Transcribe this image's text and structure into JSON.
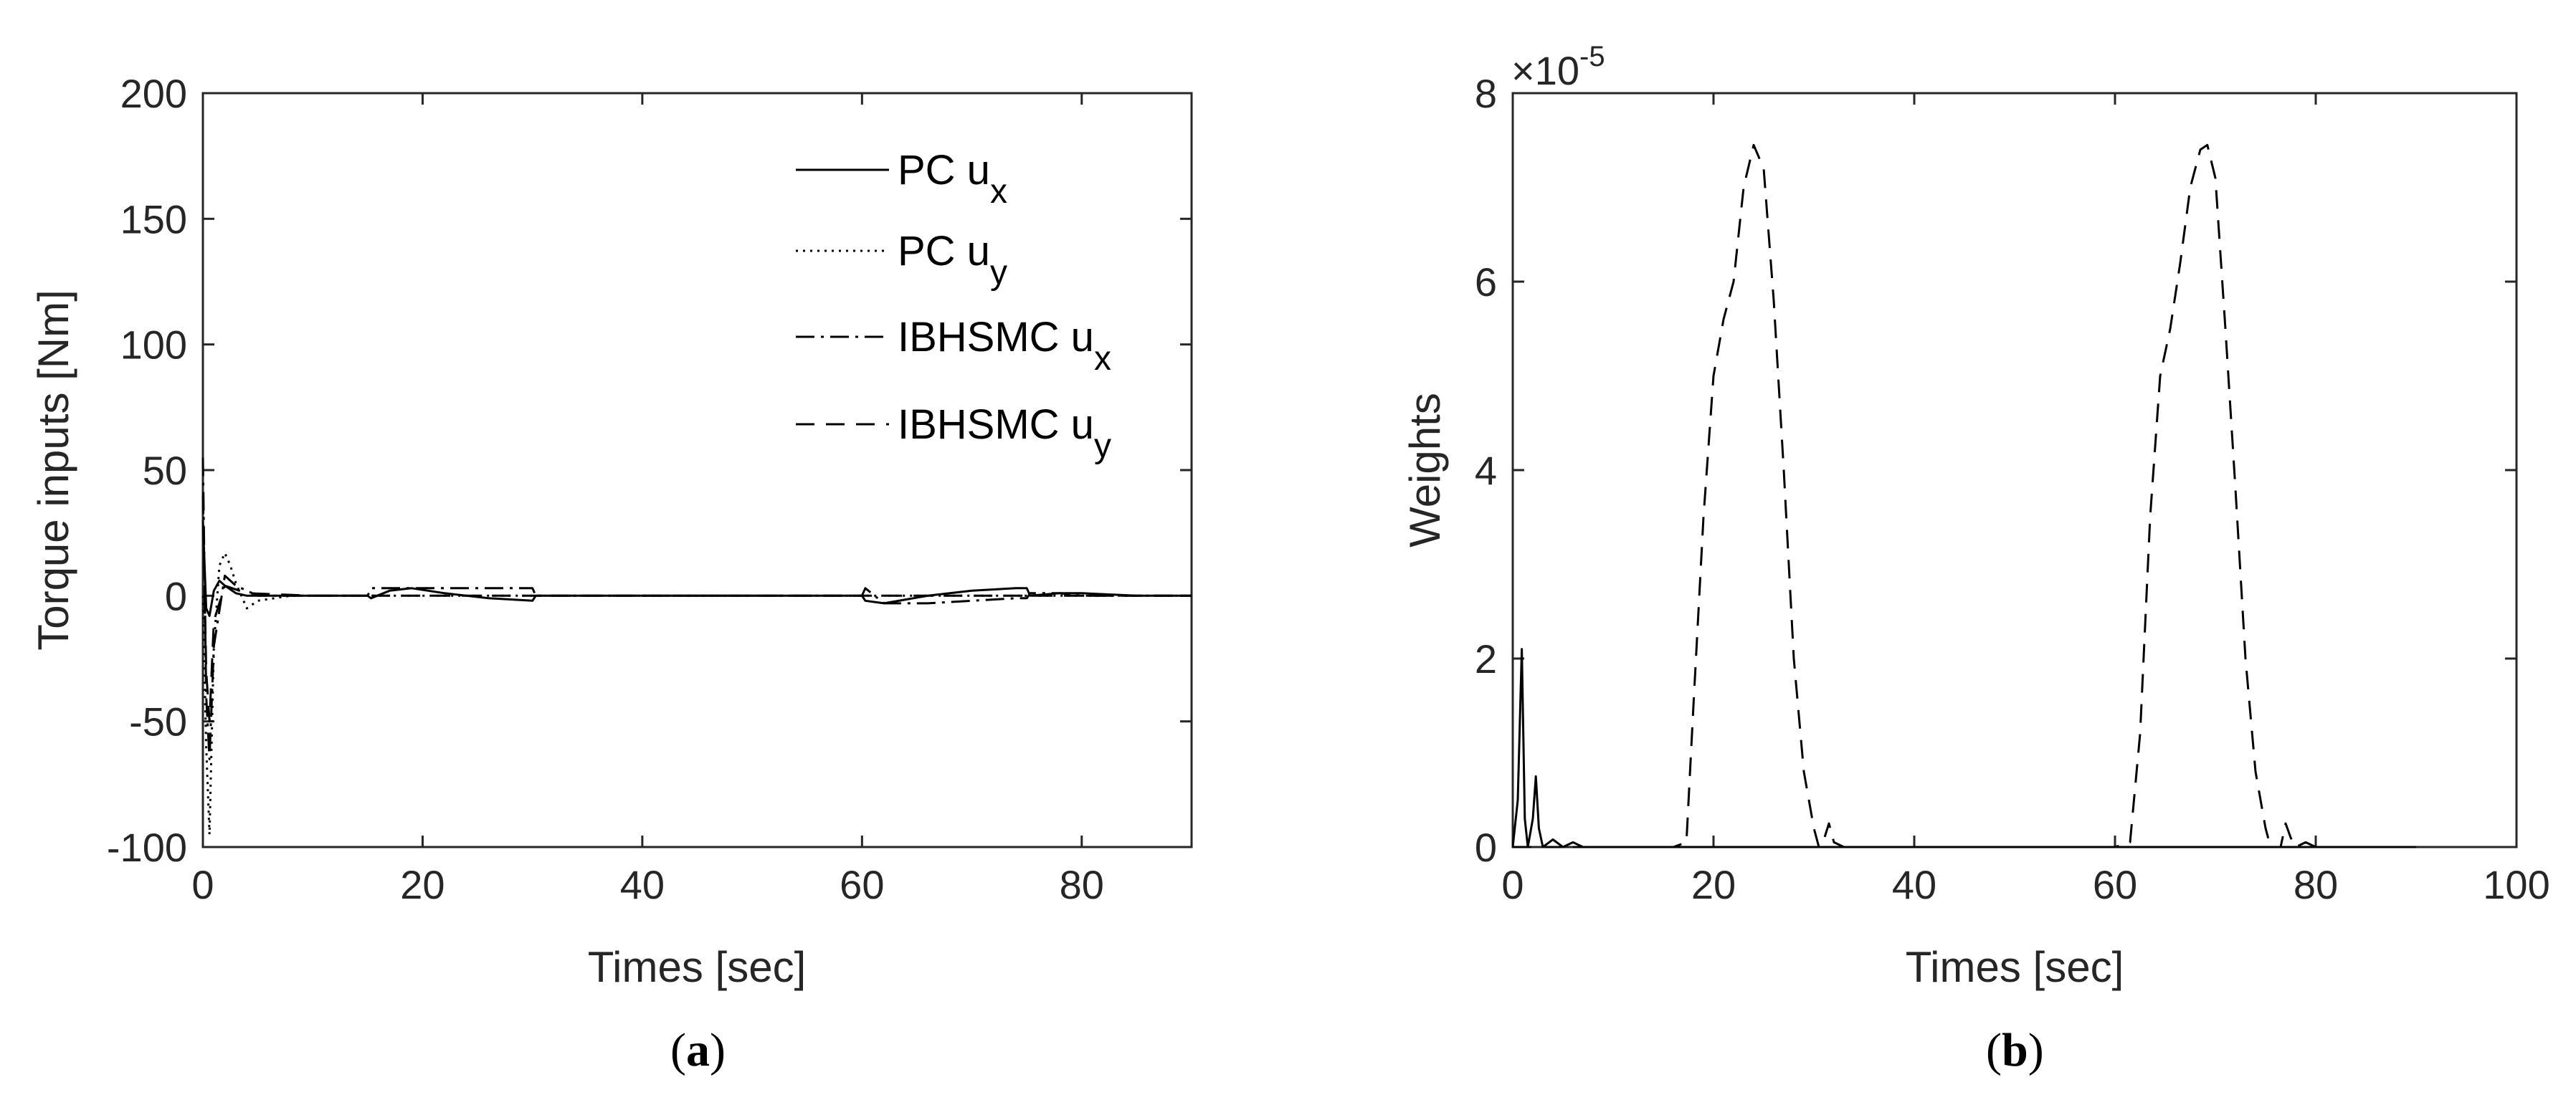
{
  "chart_data": [
    {
      "type": "line",
      "caption": "(a)",
      "xlabel": "Times [sec]",
      "ylabel": "Torque inputs [Nm]",
      "xlim": [
        0,
        90
      ],
      "ylim": [
        -100,
        200
      ],
      "xticks": [
        "0",
        "20",
        "40",
        "60",
        "80"
      ],
      "yticks": [
        "-100",
        "-50",
        "0",
        "50",
        "100",
        "150",
        "200"
      ],
      "grid": false,
      "legend_placement": "top-right",
      "series": [
        {
          "name": "PC u",
          "subscript": "x",
          "dash": "solid",
          "x": [
            0,
            0.3,
            0.6,
            1.0,
            1.5,
            2.0,
            3.0,
            4.0,
            6.0,
            10,
            15,
            15.3,
            17,
            19,
            22,
            26,
            30,
            30.3,
            33,
            40,
            50,
            60,
            60.3,
            62,
            66,
            70,
            74,
            75,
            75.3,
            78,
            80,
            85,
            90
          ],
          "y": [
            30,
            -5,
            -8,
            2,
            6,
            4,
            1,
            0,
            0,
            0,
            0,
            -1,
            2,
            3,
            1,
            -1,
            -2,
            0,
            0,
            0,
            0,
            0,
            -2,
            -3,
            0,
            2,
            3,
            3,
            0,
            1,
            1,
            0,
            0
          ]
        },
        {
          "name": "PC u",
          "subscript": "y",
          "dash": "dotted",
          "x": [
            0,
            0.3,
            0.6,
            1.0,
            1.5,
            2.0,
            2.5,
            3.0,
            4.0,
            5.0,
            8,
            15,
            20,
            30,
            40,
            60,
            80,
            90
          ],
          "y": [
            0,
            -60,
            -95,
            -20,
            12,
            17,
            12,
            5,
            -5,
            -2,
            0,
            0,
            0,
            0,
            0,
            0,
            0,
            0
          ]
        },
        {
          "name": "IBHSMC u",
          "subscript": "x",
          "dash": "dashdot",
          "x": [
            0,
            0.3,
            0.6,
            1.0,
            2.0,
            3.0,
            5.0,
            10,
            15,
            15.3,
            18,
            22,
            26,
            30,
            30.3,
            33,
            40,
            50,
            60,
            60.3,
            62,
            66,
            70,
            74,
            75,
            75.3,
            78,
            80,
            85,
            90
          ],
          "y": [
            55,
            -40,
            -65,
            -20,
            8,
            4,
            0,
            0,
            0,
            3,
            3,
            3,
            3,
            3,
            0,
            0,
            0,
            0,
            0,
            3,
            -3,
            -3,
            -2,
            -1,
            -1,
            1,
            1,
            0,
            0,
            0
          ]
        },
        {
          "name": "IBHSMC u",
          "subscript": "y",
          "dash": "dashed",
          "x": [
            0,
            0.3,
            0.6,
            1.0,
            2.0,
            4.0,
            10,
            30,
            60,
            90
          ],
          "y": [
            40,
            -30,
            -50,
            -10,
            4,
            1,
            0,
            0,
            0,
            0
          ]
        }
      ]
    },
    {
      "type": "line",
      "caption": "(b)",
      "xlabel": "Times [sec]",
      "ylabel": "Weights",
      "xlim": [
        0,
        100
      ],
      "ylim": [
        0,
        8
      ],
      "xticks": [
        "0",
        "20",
        "40",
        "60",
        "80",
        "100"
      ],
      "yticks": [
        "0",
        "2",
        "4",
        "6",
        "8"
      ],
      "exponent_label": "×10",
      "exponent_power": "-5",
      "grid": false,
      "series": [
        {
          "dash": "solid",
          "x": [
            0,
            0.5,
            0.9,
            1.2,
            1.5,
            2.0,
            2.3,
            2.6,
            3.0,
            4.0,
            5.0,
            6.0,
            7.0,
            10,
            20,
            40,
            60,
            80,
            90
          ],
          "y": [
            0,
            0.5,
            2.1,
            0.3,
            0,
            0.3,
            0.75,
            0.2,
            0,
            0.08,
            0,
            0.05,
            0,
            0,
            0,
            0,
            0,
            0,
            0
          ]
        },
        {
          "dash": "dashed",
          "x": [
            0,
            16,
            17.3,
            18,
            19,
            20,
            21,
            22,
            23,
            24,
            25,
            26,
            27,
            28,
            29,
            30,
            30.5,
            31,
            31.5,
            32,
            33,
            35,
            60,
            61.5,
            62.5,
            63.5,
            64.5,
            65.5,
            66.5,
            67.5,
            68.5,
            69.2,
            70,
            71,
            72,
            73,
            74,
            75,
            75.5,
            76.5,
            77,
            77.5,
            78,
            79,
            80,
            85,
            90
          ],
          "y": [
            0,
            0,
            0.05,
            1.5,
            3.5,
            5.0,
            5.6,
            6.0,
            7.0,
            7.45,
            7.2,
            5.8,
            4.0,
            2.0,
            0.8,
            0.2,
            0,
            0.08,
            0.25,
            0.05,
            0,
            0,
            0,
            0.05,
            1.2,
            3.5,
            5.0,
            5.5,
            6.2,
            7.0,
            7.4,
            7.45,
            7.1,
            5.5,
            3.8,
            2.0,
            0.8,
            0.2,
            0,
            0,
            0.25,
            0.1,
            0,
            0.05,
            0,
            0,
            0
          ]
        }
      ]
    }
  ]
}
